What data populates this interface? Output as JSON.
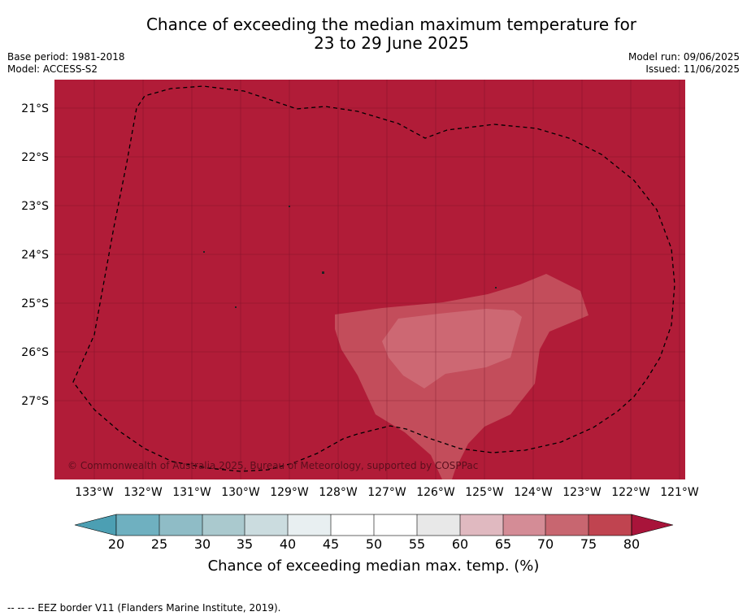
{
  "title": {
    "line1": "Chance of exceeding the median maximum temperature for",
    "line2": "23 to 29 June 2025"
  },
  "meta": {
    "base_period": "Base period: 1981-2018",
    "model": "Model: ACCESS-S2",
    "model_run": "Model run: 09/06/2025",
    "issued": "Issued: 11/06/2025"
  },
  "map": {
    "latitudes": [
      "21°S",
      "22°S",
      "23°S",
      "24°S",
      "25°S",
      "26°S",
      "27°S"
    ],
    "longitudes": [
      "133°W",
      "132°W",
      "131°W",
      "130°W",
      "129°W",
      "128°W",
      "127°W",
      "126°W",
      "125°W",
      "124°W",
      "123°W",
      "122°W",
      "121°W"
    ],
    "copyright": "© Commonwealth of Australia 2025, Bureau of Meteorology, supported by COSPPac",
    "colors": {
      "band_80_plus": "#b11c38",
      "band_70_75": "#c34d5b",
      "band_65_70": "#cd6873",
      "grid": "#6a0d20"
    }
  },
  "colorbar": {
    "ticks": [
      "20",
      "25",
      "30",
      "35",
      "40",
      "45",
      "50",
      "55",
      "60",
      "65",
      "70",
      "75",
      "80"
    ],
    "colors": [
      "#4c9fb3",
      "#6fb0c0",
      "#8fbcc6",
      "#aac9ce",
      "#cbdcdf",
      "#e8eff1",
      "#ffffff",
      "#ffffff",
      "#e8e8e8",
      "#e0b9c0",
      "#d48c96",
      "#c86670",
      "#c04450",
      "#a8143a"
    ],
    "label": "Chance of exceeding median max. temp. (%)"
  },
  "legend": {
    "eez": "--  --  -- EEZ border V11 (Flanders Marine Institute, 2019)."
  }
}
